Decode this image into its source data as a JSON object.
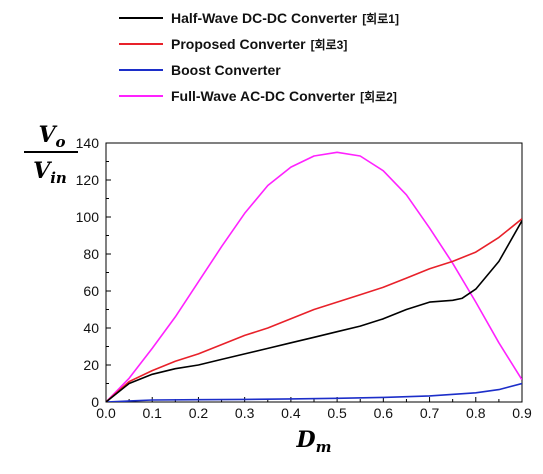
{
  "chart_data": {
    "type": "line",
    "xlabel": {
      "main": "D",
      "sub": "m"
    },
    "ylabel": {
      "numerator_main": "V",
      "numerator_sub": "o",
      "denominator_main": "V",
      "denominator_sub": "in"
    },
    "xlim": [
      0.0,
      0.9
    ],
    "ylim": [
      0,
      140
    ],
    "xticks": [
      "0.0",
      "0.1",
      "0.2",
      "0.3",
      "0.4",
      "0.5",
      "0.6",
      "0.7",
      "0.8",
      "0.9"
    ],
    "yticks": [
      "0",
      "20",
      "40",
      "60",
      "80",
      "100",
      "120",
      "140"
    ],
    "legend_position": "top",
    "grid": false,
    "series": [
      {
        "name": "Half-Wave DC-DC Converter",
        "tag": "[회로1]",
        "color": "#000000",
        "x": [
          0.0,
          0.05,
          0.1,
          0.15,
          0.2,
          0.25,
          0.3,
          0.35,
          0.4,
          0.45,
          0.5,
          0.55,
          0.6,
          0.65,
          0.7,
          0.75,
          0.77,
          0.8,
          0.85,
          0.9
        ],
        "y": [
          0,
          10,
          15,
          18,
          20,
          23,
          26,
          29,
          32,
          35,
          38,
          41,
          45,
          50,
          54,
          55,
          56,
          61,
          76,
          98
        ]
      },
      {
        "name": "Proposed Converter",
        "tag": "[회로3]",
        "color": "#e8212a",
        "x": [
          0.0,
          0.05,
          0.1,
          0.15,
          0.2,
          0.25,
          0.3,
          0.35,
          0.4,
          0.45,
          0.5,
          0.55,
          0.6,
          0.65,
          0.7,
          0.75,
          0.8,
          0.85,
          0.9
        ],
        "y": [
          0,
          11,
          17,
          22,
          26,
          31,
          36,
          40,
          45,
          50,
          54,
          58,
          62,
          67,
          72,
          76,
          81,
          89,
          99
        ]
      },
      {
        "name": "Boost Converter",
        "tag": "",
        "color": "#1c2ec9",
        "x": [
          0.0,
          0.1,
          0.2,
          0.3,
          0.4,
          0.5,
          0.6,
          0.7,
          0.8,
          0.85,
          0.9
        ],
        "y": [
          0,
          1.1,
          1.25,
          1.4,
          1.7,
          2,
          2.5,
          3.3,
          5,
          6.7,
          10
        ]
      },
      {
        "name": "Full-Wave AC-DC Converter",
        "tag": "[회로2]",
        "color": "#ff22ff",
        "x": [
          0.0,
          0.05,
          0.1,
          0.15,
          0.2,
          0.25,
          0.3,
          0.35,
          0.4,
          0.45,
          0.5,
          0.55,
          0.6,
          0.65,
          0.7,
          0.75,
          0.8,
          0.85,
          0.9
        ],
        "y": [
          0,
          12.8,
          29,
          46,
          65,
          84,
          102,
          117,
          127,
          133,
          135,
          133,
          125,
          112,
          94,
          75,
          54,
          32,
          12
        ]
      }
    ]
  }
}
